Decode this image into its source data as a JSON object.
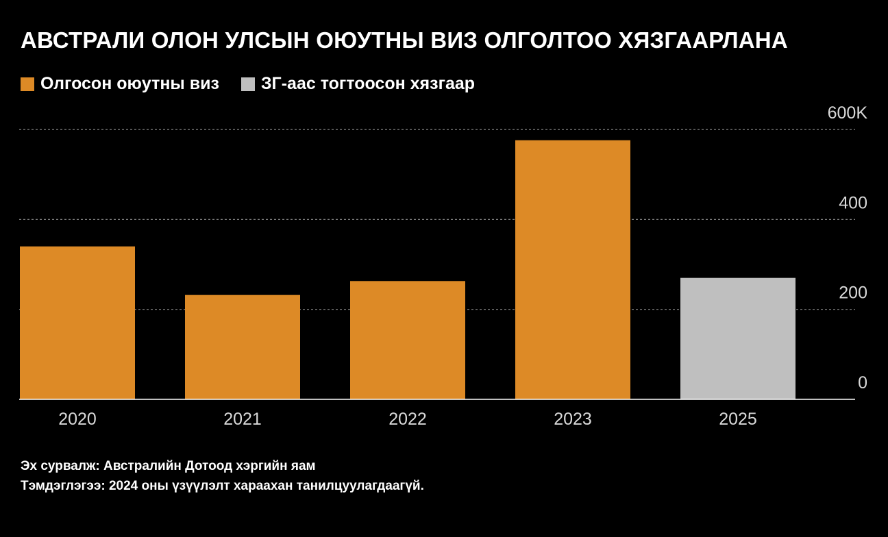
{
  "title": "АВСТРАЛИ ОЛОН УЛСЫН ОЮУТНЫ ВИЗ ОЛГОЛТОО ХЯЗГААРЛАНА",
  "legend": [
    {
      "label": "Олгосон оюутны виз",
      "color": "#dd8a26"
    },
    {
      "label": "ЗГ-аас тогтоосон хязгаар",
      "color": "#bfbfbf"
    }
  ],
  "footer": {
    "source": "Эх сурвалж: Австралийн Дотоод хэргийн яам",
    "note": "Тэмдэглэгээ: 2024 оны үзүүлэлт хараахан танилцуулагдаагүй."
  },
  "chart_data": {
    "type": "bar",
    "categories": [
      "2020",
      "2021",
      "2022",
      "2023",
      "2025"
    ],
    "series": [
      {
        "name": "Олгосон оюутны виз",
        "values": [
          340,
          232,
          263,
          576,
          null
        ],
        "color": "#dd8a26"
      },
      {
        "name": "ЗГ-аас тогтоосон хязгаар",
        "values": [
          null,
          null,
          null,
          null,
          270
        ],
        "color": "#bfbfbf"
      }
    ],
    "ylim": [
      0,
      600
    ],
    "yticks": [
      {
        "value": 0,
        "label": "0"
      },
      {
        "value": 200,
        "label": "200"
      },
      {
        "value": 400,
        "label": "400"
      },
      {
        "value": 600,
        "label": "600K"
      }
    ],
    "grid": true,
    "legend_position": "top-left",
    "axis_position": "right",
    "title": "АВСТРАЛИ ОЛОН УЛСЫН ОЮУТНЫ ВИЗ ОЛГОЛТОО ХЯЗГААРЛАНА",
    "xlabel": "",
    "ylabel": ""
  }
}
